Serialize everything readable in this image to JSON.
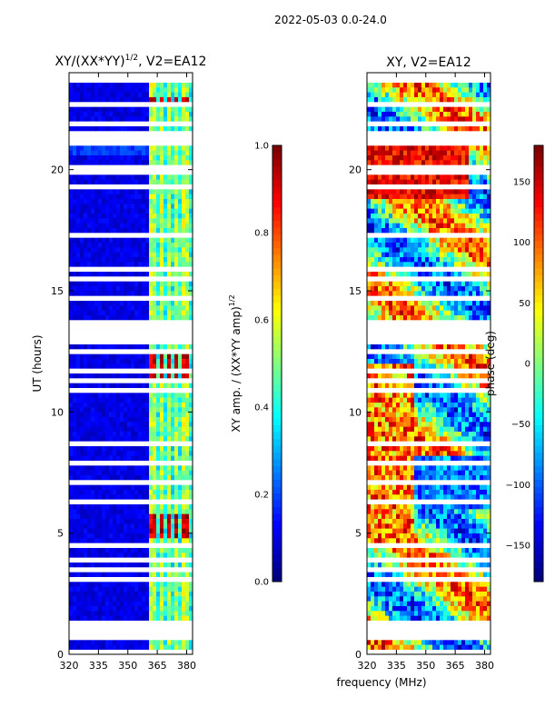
{
  "figure": {
    "suptitle": "2022-05-03 0.0-24.0",
    "xlabel_shared": "frequency (MHz)"
  },
  "chart_data": [
    {
      "type": "heatmap",
      "title": "XY/(XX*YY)^{1/2}, V2=EA12",
      "title_main": "XY/(XX*YY)",
      "title_exp": "1/2",
      "title_tail": ", V2=EA12",
      "xlabel": "",
      "ylabel": "UT (hours)",
      "xlim": [
        320,
        383
      ],
      "ylim": [
        0,
        24
      ],
      "xticks": [
        320,
        335,
        350,
        365,
        380
      ],
      "yticks": [
        0,
        5,
        10,
        15,
        20
      ],
      "colorbar": {
        "label": "XY amp. / (XX*YY amp)^{1/2}",
        "label_main": "XY amp. / (XX*YY amp)",
        "label_exp": "1/2",
        "range": [
          0.0,
          1.0
        ],
        "ticks": [
          0.0,
          0.2,
          0.4,
          0.6,
          0.8,
          1.0
        ],
        "tick_labels": [
          "0.0",
          "0.2",
          "0.4",
          "0.6",
          "0.8",
          "1.0"
        ],
        "colormap": "jet"
      },
      "description_of_values": "Mostly low amplitude (~0.05-0.15) across 320-361 MHz; elevated amplitude (0.4-1.0) in channels ~362-382 MHz, strongest near 5 h and 12 h; horizontal white gaps (flagged data) throughout."
    },
    {
      "type": "heatmap",
      "title": "XY, V2=EA12",
      "xlabel": "frequency (MHz)",
      "ylabel": "",
      "xlim": [
        320,
        383
      ],
      "ylim": [
        0,
        24
      ],
      "xticks": [
        320,
        335,
        350,
        365,
        380
      ],
      "yticks": [
        0,
        5,
        10,
        15,
        20
      ],
      "colorbar": {
        "label": "phase (deg)",
        "range": [
          -180,
          180
        ],
        "ticks": [
          -150,
          -100,
          -50,
          0,
          50,
          100,
          150
        ],
        "tick_labels": [
          "−150",
          "−100",
          "−50",
          "0",
          "50",
          "100",
          "150"
        ],
        "colormap": "jet"
      },
      "description_of_values": "Phase varies widely; large positive phase (~100-170 deg) around 19-21.5 h at lower frequencies, mixed noisy phases elsewhere, blue (negative) bands near 6-8 h."
    }
  ],
  "colors": {
    "jet_low": "#00007f",
    "jet_mid": "#7fff7f",
    "jet_high": "#7f0000",
    "gap": "#ffffff"
  }
}
